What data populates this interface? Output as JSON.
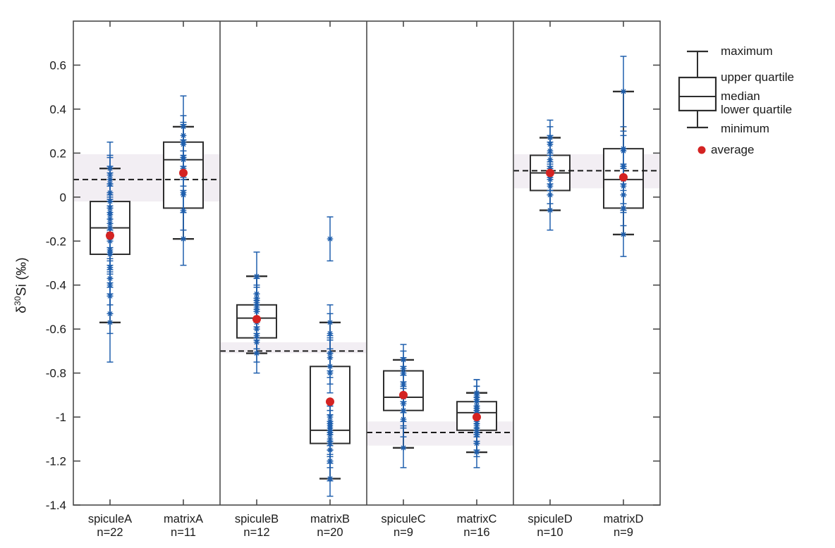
{
  "figure": {
    "background": "#ffffff"
  },
  "y_axis": {
    "title_delta": "δ",
    "title_superscript": "30",
    "title_rest": "Si (‰)"
  },
  "legend": {
    "items": [
      "maximum",
      "upper quartile",
      "median",
      "lower quartile",
      "minimum",
      "average"
    ]
  },
  "colors": {
    "point_blue": "#1f5fad",
    "mean_red": "#d42322",
    "box_line": "#2e2e2e",
    "axis_line": "#4a4a4a",
    "dashed_line": "#1a1a1a",
    "band_fill": "#f2eef3",
    "text": "#1a1a1a"
  },
  "chart_data": {
    "type": "box",
    "title": "",
    "xlabel": "",
    "ylabel": "δ30Si (‰)",
    "ylim": [
      -1.4,
      0.8
    ],
    "grid": false,
    "legend_position": "right",
    "yticks": [
      {
        "v": 0.6,
        "label": "0.6"
      },
      {
        "v": 0.4,
        "label": "0.4"
      },
      {
        "v": 0.2,
        "label": "0.2"
      },
      {
        "v": 0.0,
        "label": "0"
      },
      {
        "v": -0.2,
        "label": "-0.2"
      },
      {
        "v": -0.4,
        "label": "-0.4"
      },
      {
        "v": -0.6,
        "label": "-0.6"
      },
      {
        "v": -0.8,
        "label": "-0.8"
      },
      {
        "v": -1.0,
        "label": "-1"
      },
      {
        "v": -1.2,
        "label": "-1.2"
      },
      {
        "v": -1.4,
        "label": "-1.4"
      }
    ],
    "panels": [
      {
        "dashed": 0.08,
        "band": [
          -0.02,
          0.195
        ]
      },
      {
        "dashed": -0.7,
        "band": [
          -0.71,
          -0.66
        ]
      },
      {
        "dashed": -1.07,
        "band": [
          -1.13,
          -1.02
        ]
      },
      {
        "dashed": 0.12,
        "band": [
          0.04,
          0.195
        ]
      }
    ],
    "groups": [
      {
        "name": "spiculeA",
        "n_label": "n=22",
        "n": 22,
        "whisker_max": 0.13,
        "q3": -0.02,
        "median": -0.14,
        "q1": -0.26,
        "whisker_min": -0.57,
        "mean": -0.175,
        "points": [
          [
            0.13,
            0.12
          ],
          [
            0.1,
            0.09
          ],
          [
            0.08,
            0.1
          ],
          [
            0.06,
            0.08
          ],
          [
            0.02,
            0.09
          ],
          [
            -0.02,
            0.08
          ],
          [
            -0.05,
            0.1
          ],
          [
            -0.07,
            0.09
          ],
          [
            -0.08,
            0.08
          ],
          [
            -0.1,
            0.09
          ],
          [
            -0.12,
            0.08
          ],
          [
            -0.14,
            0.09
          ],
          [
            -0.2,
            0.08
          ],
          [
            -0.24,
            0.09
          ],
          [
            -0.25,
            0.1
          ],
          [
            -0.26,
            0.08
          ],
          [
            -0.32,
            0.09
          ],
          [
            -0.37,
            0.08
          ],
          [
            -0.4,
            0.09
          ],
          [
            -0.45,
            0.08
          ],
          [
            -0.53,
            0.09
          ],
          [
            -0.57,
            0.18
          ]
        ]
      },
      {
        "name": "matrixA",
        "n_label": "n=11",
        "n": 11,
        "whisker_max": 0.32,
        "q3": 0.25,
        "median": 0.17,
        "q1": -0.05,
        "whisker_min": -0.19,
        "mean": 0.11,
        "points": [
          [
            0.32,
            0.14
          ],
          [
            0.28,
            0.09
          ],
          [
            0.25,
            0.08
          ],
          [
            0.24,
            0.1
          ],
          [
            0.18,
            0.08
          ],
          [
            0.17,
            0.09
          ],
          [
            0.13,
            0.08
          ],
          [
            0.02,
            0.09
          ],
          [
            0.01,
            0.08
          ],
          [
            -0.06,
            0.09
          ],
          [
            -0.19,
            0.12
          ]
        ]
      },
      {
        "name": "spiculeB",
        "n_label": "n=12",
        "n": 12,
        "whisker_max": -0.36,
        "q3": -0.49,
        "median": -0.55,
        "q1": -0.64,
        "whisker_min": -0.71,
        "mean": -0.555,
        "points": [
          [
            -0.36,
            0.11
          ],
          [
            -0.44,
            0.08
          ],
          [
            -0.46,
            0.09
          ],
          [
            -0.48,
            0.08
          ],
          [
            -0.5,
            0.09
          ],
          [
            -0.52,
            0.08
          ],
          [
            -0.55,
            0.09
          ],
          [
            -0.57,
            0.08
          ],
          [
            -0.6,
            0.09
          ],
          [
            -0.63,
            0.08
          ],
          [
            -0.66,
            0.09
          ],
          [
            -0.71,
            0.09
          ]
        ]
      },
      {
        "name": "matrixB",
        "n_label": "n=20",
        "n": 20,
        "whisker_max": -0.57,
        "q3": -0.77,
        "median": -1.06,
        "q1": -1.12,
        "whisker_min": -1.28,
        "mean": -0.93,
        "points": [
          [
            -0.19,
            0.1
          ],
          [
            -0.57,
            0.08
          ],
          [
            -0.62,
            0.09
          ],
          [
            -0.71,
            0.08
          ],
          [
            -0.73,
            0.09
          ],
          [
            -0.77,
            0.08
          ],
          [
            -0.8,
            0.09
          ],
          [
            -1.0,
            0.08
          ],
          [
            -1.02,
            0.09
          ],
          [
            -1.03,
            0.08
          ],
          [
            -1.04,
            0.09
          ],
          [
            -1.05,
            0.08
          ],
          [
            -1.06,
            0.09
          ],
          [
            -1.07,
            0.08
          ],
          [
            -1.08,
            0.09
          ],
          [
            -1.1,
            0.08
          ],
          [
            -1.12,
            0.09
          ],
          [
            -1.15,
            0.08
          ],
          [
            -1.2,
            0.09
          ],
          [
            -1.28,
            0.08
          ]
        ]
      },
      {
        "name": "spiculeC",
        "n_label": "n=9",
        "n": 9,
        "whisker_max": -0.74,
        "q3": -0.79,
        "median": -0.91,
        "q1": -0.97,
        "whisker_min": -1.14,
        "mean": -0.9,
        "points": [
          [
            -0.74,
            0.07
          ],
          [
            -0.78,
            0.08
          ],
          [
            -0.8,
            0.07
          ],
          [
            -0.85,
            0.08
          ],
          [
            -0.91,
            0.07
          ],
          [
            -0.94,
            0.08
          ],
          [
            -0.97,
            0.07
          ],
          [
            -1.01,
            0.08
          ],
          [
            -1.14,
            0.09
          ]
        ]
      },
      {
        "name": "matrixC",
        "n_label": "n=16",
        "n": 16,
        "whisker_max": -0.89,
        "q3": -0.93,
        "median": -0.98,
        "q1": -1.06,
        "whisker_min": -1.16,
        "mean": -1.0,
        "points": [
          [
            -0.89,
            0.06
          ],
          [
            -0.9,
            0.07
          ],
          [
            -0.92,
            0.06
          ],
          [
            -0.93,
            0.07
          ],
          [
            -0.95,
            0.06
          ],
          [
            -0.96,
            0.07
          ],
          [
            -0.97,
            0.06
          ],
          [
            -0.98,
            0.07
          ],
          [
            -0.99,
            0.06
          ],
          [
            -1.0,
            0.07
          ],
          [
            -1.02,
            0.06
          ],
          [
            -1.04,
            0.07
          ],
          [
            -1.06,
            0.06
          ],
          [
            -1.08,
            0.07
          ],
          [
            -1.12,
            0.06
          ],
          [
            -1.16,
            0.07
          ]
        ]
      },
      {
        "name": "spiculeD",
        "n_label": "n=10",
        "n": 10,
        "whisker_max": 0.27,
        "q3": 0.19,
        "median": 0.11,
        "q1": 0.03,
        "whisker_min": -0.06,
        "mean": 0.11,
        "points": [
          [
            0.27,
            0.08
          ],
          [
            0.24,
            0.08
          ],
          [
            0.21,
            0.07
          ],
          [
            0.17,
            0.08
          ],
          [
            0.13,
            0.07
          ],
          [
            0.11,
            0.08
          ],
          [
            0.08,
            0.07
          ],
          [
            0.05,
            0.08
          ],
          [
            0.01,
            0.07
          ],
          [
            -0.06,
            0.09
          ]
        ]
      },
      {
        "name": "matrixD",
        "n_label": "n=9",
        "n": 9,
        "whisker_max": 0.48,
        "q3": 0.22,
        "median": 0.08,
        "q1": -0.05,
        "whisker_min": -0.17,
        "mean": 0.09,
        "points": [
          [
            0.48,
            0.16
          ],
          [
            0.22,
            0.08
          ],
          [
            0.21,
            0.07
          ],
          [
            0.14,
            0.08
          ],
          [
            0.08,
            0.07
          ],
          [
            0.05,
            0.08
          ],
          [
            0.01,
            0.07
          ],
          [
            -0.05,
            0.08
          ],
          [
            -0.17,
            0.1
          ]
        ]
      }
    ]
  }
}
